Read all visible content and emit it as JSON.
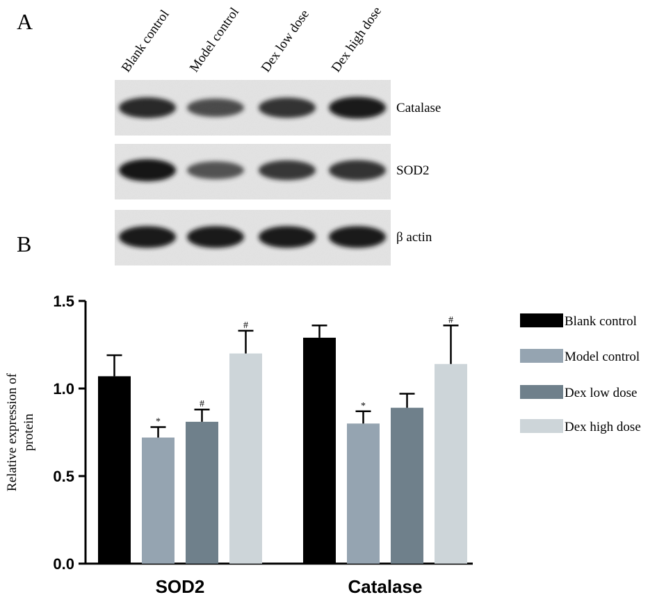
{
  "panel_a": {
    "label": "A",
    "lanes": [
      "Blank control",
      "Model control",
      "Dex low dose",
      "Dex high dose"
    ],
    "blots": [
      {
        "name": "Catalase",
        "intensities": [
          0.85,
          0.6,
          0.8,
          0.95
        ]
      },
      {
        "name": "SOD2",
        "intensities": [
          1.0,
          0.55,
          0.75,
          0.8
        ]
      },
      {
        "name": "β actin",
        "intensities": [
          0.95,
          0.95,
          0.95,
          0.95
        ]
      }
    ]
  },
  "panel_b": {
    "label": "B"
  },
  "chart_data": {
    "type": "bar",
    "categories": [
      "SOD2",
      "Catalase"
    ],
    "series": [
      {
        "name": "Blank control",
        "color": "#000000",
        "values": [
          1.07,
          1.29
        ],
        "errors": [
          0.12,
          0.07
        ],
        "marks": [
          "",
          ""
        ]
      },
      {
        "name": "Model control",
        "color": "#95a4b1",
        "values": [
          0.72,
          0.8
        ],
        "errors": [
          0.06,
          0.07
        ],
        "marks": [
          "*",
          "*"
        ]
      },
      {
        "name": "Dex low dose",
        "color": "#6f808b",
        "values": [
          0.81,
          0.89
        ],
        "errors": [
          0.07,
          0.08
        ],
        "marks": [
          "#",
          ""
        ]
      },
      {
        "name": "Dex high dose",
        "color": "#cdd5d9",
        "values": [
          1.2,
          1.14
        ],
        "errors": [
          0.13,
          0.22
        ],
        "marks": [
          "#",
          "#"
        ]
      }
    ],
    "title": "",
    "xlabel": "",
    "ylabel": "Relative expression of protein",
    "ylabel_lines": [
      "Relative expression of",
      "protein"
    ],
    "ylim": [
      0,
      1.5
    ],
    "yticks": [
      "0.0",
      "0.5",
      "1.0",
      "1.5"
    ],
    "grid": false,
    "legend": "right"
  }
}
